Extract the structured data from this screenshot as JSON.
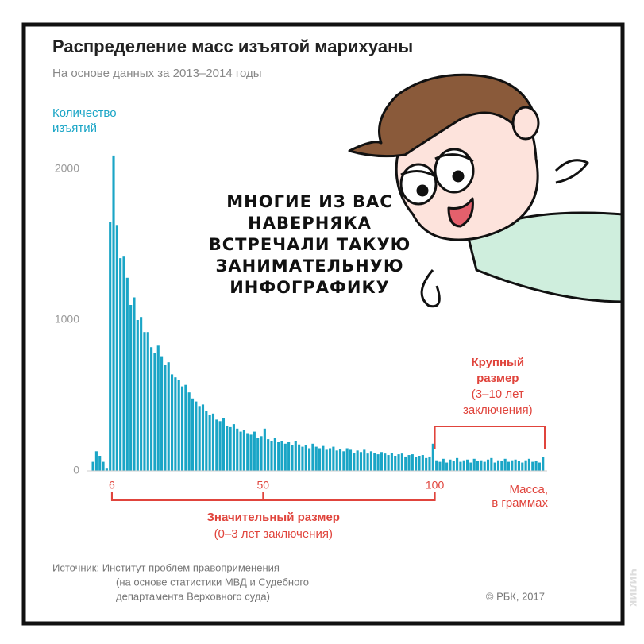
{
  "chart_data": {
    "type": "histogram",
    "title": "Распределение масс изъятой марихуаны",
    "subtitle": "На основе данных за 2013–2014 годы",
    "y_label": [
      "Количество",
      "изъятий"
    ],
    "x_label": [
      "Масса,",
      "в граммах"
    ],
    "color": "#1aa5c6",
    "bins": [
      0,
      1,
      2,
      3,
      4,
      5,
      6,
      7,
      8,
      9,
      10,
      11,
      12,
      13,
      14,
      15,
      16,
      17,
      18,
      19,
      20,
      21,
      22,
      23,
      24,
      25,
      26,
      27,
      28,
      29,
      30,
      31,
      32,
      33,
      34,
      35,
      36,
      37,
      38,
      39,
      40,
      41,
      42,
      43,
      44,
      45,
      46,
      47,
      48,
      49,
      50,
      51,
      52,
      53,
      54,
      55,
      56,
      57,
      58,
      59,
      60,
      61,
      62,
      63,
      64,
      65,
      66,
      67,
      68,
      69,
      70,
      71,
      72,
      73,
      74,
      75,
      76,
      77,
      78,
      79,
      80,
      81,
      82,
      83,
      84,
      85,
      86,
      87,
      88,
      89,
      90,
      91,
      92,
      93,
      94,
      95,
      96,
      97,
      98,
      99,
      100,
      101,
      102,
      103,
      104,
      105,
      106,
      107,
      108,
      109,
      110,
      111,
      112,
      113,
      114,
      115,
      116,
      117,
      118,
      119,
      120,
      121,
      122,
      123,
      124,
      125,
      126,
      127,
      128,
      129,
      130,
      131,
      132
    ],
    "values": [
      60,
      130,
      100,
      60,
      20,
      1650,
      2090,
      1630,
      1410,
      1420,
      1280,
      1100,
      1150,
      1000,
      1020,
      920,
      920,
      820,
      780,
      830,
      760,
      700,
      720,
      640,
      620,
      600,
      560,
      570,
      520,
      480,
      460,
      430,
      440,
      400,
      370,
      380,
      340,
      330,
      350,
      300,
      290,
      310,
      280,
      260,
      270,
      250,
      240,
      260,
      220,
      230,
      280,
      210,
      200,
      220,
      190,
      200,
      180,
      190,
      170,
      200,
      175,
      160,
      170,
      150,
      180,
      160,
      150,
      165,
      140,
      150,
      160,
      135,
      145,
      130,
      150,
      140,
      120,
      135,
      125,
      140,
      115,
      130,
      120,
      110,
      125,
      115,
      105,
      120,
      100,
      110,
      115,
      95,
      105,
      110,
      90,
      100,
      105,
      85,
      95,
      180,
      70,
      60,
      80,
      55,
      75,
      65,
      85,
      60,
      70,
      75,
      55,
      80,
      65,
      70,
      60,
      75,
      85,
      55,
      70,
      65,
      80,
      60,
      70,
      75,
      65,
      55,
      70,
      80,
      60,
      65,
      55,
      90
    ],
    "xlim": [
      0,
      132
    ],
    "xticks": [
      6,
      50,
      100
    ],
    "ylim": [
      0,
      2200
    ],
    "yticks": [
      0,
      1000,
      2000
    ],
    "annotations": [
      {
        "lines": [
          "Значительный размер",
          "(0–3 лет заключения)"
        ],
        "range": [
          6,
          100
        ],
        "color": "#e0443c"
      },
      {
        "lines": [
          "Крупный",
          "размер",
          "(3–10 лет",
          "заключения)"
        ],
        "range": [
          100,
          132
        ],
        "color": "#e0443c"
      }
    ],
    "source": [
      "Источник: Институт проблем правоприменения",
      "(на основе статистики МВД и Судебного",
      "департамента Верховного суда)"
    ],
    "credit": "© РБК, 2017"
  },
  "speech": [
    "МНОГИЕ ИЗ ВАС",
    "НАВЕРНЯКА",
    "ВСТРЕЧАЛИ ТАКУЮ",
    "ЗАНИМАТЕЛЬНУЮ",
    "ИНФОГРАФИКУ"
  ],
  "watermark": "чилик"
}
